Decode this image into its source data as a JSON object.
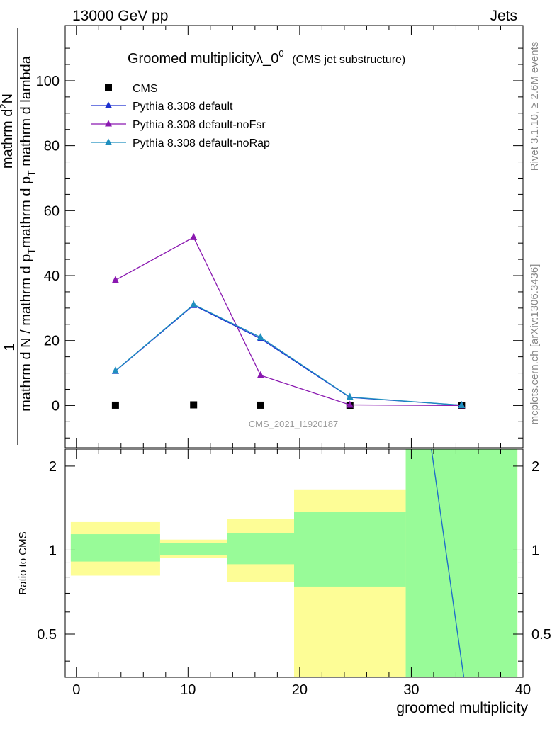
{
  "header": {
    "energy_label": "13000 GeV pp",
    "process_label": "Jets"
  },
  "side_labels": {
    "rivet": "Rivet 3.1.10, ≥ 2.6M events",
    "source": "mcplots.cern.ch [arXiv:1306.3436]"
  },
  "chart_data": [
    {
      "type": "line",
      "title": "Groomed multiplicityλ_0",
      "title_superscript": "0",
      "subtitle": "(CMS jet substructure)",
      "watermark": "CMS_2021_I1920187",
      "ylabel": {
        "lead": "1",
        "numerator": "mathrm d²N",
        "denominator": "mathrm d N / mathrm d p_T mathrm d p_T mathrm d lambda",
        "numerator_prefix": "mathrm d",
        "numerator_sup": "2",
        "numerator_suffix": "N",
        "den_1": "mathrm d N / mathrm d p",
        "den_sub_1": "T",
        "den_2": "mathrm d p",
        "den_sub_2": "T",
        "den_3": " mathrm d lambda"
      },
      "xlim": [
        -1,
        40
      ],
      "ylim": [
        -13,
        117
      ],
      "yticks": [
        0,
        20,
        40,
        60,
        80,
        100
      ],
      "ytick_labels": [
        "0",
        "20",
        "40",
        "60",
        "80",
        "100"
      ],
      "legend_position": "top-left",
      "series": [
        {
          "name": "CMS",
          "marker": "square",
          "color": "#000000",
          "x": [
            3.5,
            10.5,
            16.5,
            24.5,
            34.5
          ],
          "y": [
            0.1,
            0.2,
            0.1,
            0.05,
            0.02
          ]
        },
        {
          "name": "Pythia 8.308 default",
          "marker": "triangle",
          "color": "#1c2fd0",
          "x": [
            3.5,
            10.5,
            16.5,
            24.5,
            34.5
          ],
          "y": [
            10.6,
            30.9,
            20.6,
            2.5,
            0.1
          ]
        },
        {
          "name": "Pythia 8.308 default-noFsr",
          "marker": "triangle",
          "color": "#8a18b0",
          "x": [
            3.5,
            10.5,
            16.5,
            24.5,
            34.5
          ],
          "y": [
            38.6,
            51.8,
            9.3,
            0.2,
            0.0
          ]
        },
        {
          "name": "Pythia 8.308 default-noRap",
          "marker": "triangle",
          "color": "#1f8fbf",
          "x": [
            3.5,
            10.5,
            16.5,
            24.5,
            34.5
          ],
          "y": [
            10.7,
            31.1,
            21.0,
            2.6,
            0.1
          ]
        }
      ]
    },
    {
      "type": "area",
      "ylabel": "Ratio to CMS",
      "xlabel": "groomed multiplicity",
      "xlim": [
        -1,
        40
      ],
      "ylim": [
        0.35,
        2.3
      ],
      "xticks": [
        0,
        10,
        20,
        30,
        40
      ],
      "xtick_labels": [
        "0",
        "10",
        "20",
        "30",
        "40"
      ],
      "yticks": [
        0.5,
        1,
        2
      ],
      "ytick_labels": [
        "0.5",
        "1",
        "2"
      ],
      "reference_line": 1,
      "bins": [
        {
          "xlow": -0.5,
          "xhigh": 7.5,
          "band_total": [
            0.81,
            1.26
          ],
          "band_stat": [
            0.91,
            1.14
          ]
        },
        {
          "xlow": 7.5,
          "xhigh": 13.5,
          "band_total": [
            0.94,
            1.09
          ],
          "band_stat": [
            0.96,
            1.06
          ]
        },
        {
          "xlow": 13.5,
          "xhigh": 19.5,
          "band_total": [
            0.77,
            1.29
          ],
          "band_stat": [
            0.89,
            1.15
          ]
        },
        {
          "xlow": 19.5,
          "xhigh": 29.5,
          "band_total": [
            0.35,
            1.65
          ],
          "band_stat": [
            0.74,
            1.37
          ]
        },
        {
          "xlow": 29.5,
          "xhigh": 39.5,
          "band_total": [
            0.35,
            2.3
          ],
          "band_stat": [
            0.35,
            2.3
          ]
        }
      ],
      "series": [
        {
          "name": "Pythia 8.308 default-noRap",
          "color": "#1f6fc8",
          "x": [
            31.8,
            34.7
          ],
          "y": [
            2.3,
            0.35
          ]
        }
      ],
      "band_colors": {
        "total": "#fdfd96",
        "stat": "#98fb98"
      }
    }
  ]
}
